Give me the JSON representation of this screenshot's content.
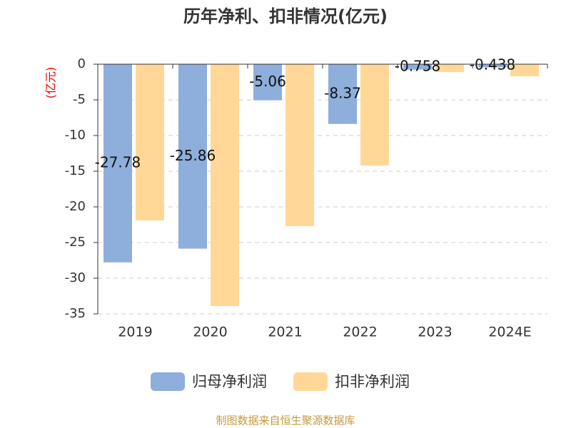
{
  "chart_data": {
    "type": "bar",
    "title": "历年净利、扣非情况(亿元)",
    "y_label": "(亿元)",
    "categories": [
      "2019",
      "2020",
      "2021",
      "2022",
      "2023",
      "2024E"
    ],
    "series": [
      {
        "name": "归母净利润",
        "color": "#8eaedb",
        "values": [
          -27.78,
          -25.86,
          -5.06,
          -8.37,
          -0.758,
          -0.438
        ]
      },
      {
        "name": "扣非净利润",
        "color": "#ffd898",
        "values": [
          -21.9,
          -33.9,
          -22.7,
          -14.2,
          -1.1,
          -1.7
        ]
      }
    ],
    "ylim": [
      -35,
      0
    ],
    "yticks": [
      0,
      -5,
      -10,
      -15,
      -20,
      -25,
      -30,
      -35
    ],
    "grid": true,
    "source": "制图数据来自恒生聚源数据库"
  }
}
